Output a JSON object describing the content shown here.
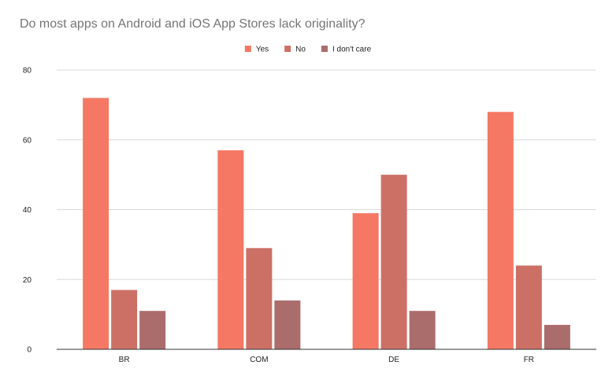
{
  "chart_data": {
    "type": "bar",
    "title": "Do most apps on Android and iOS App Stores lack originality?",
    "categories": [
      "BR",
      "COM",
      "DE",
      "FR"
    ],
    "series": [
      {
        "name": "Yes",
        "values": [
          72,
          57,
          39,
          68
        ],
        "color": "#f47864"
      },
      {
        "name": "No",
        "values": [
          17,
          29,
          50,
          24
        ],
        "color": "#cc7066"
      },
      {
        "name": "I don't care",
        "values": [
          11,
          14,
          11,
          7
        ],
        "color": "#ab6c6c"
      }
    ],
    "ylim": [
      0,
      80
    ],
    "yticks": [
      0,
      20,
      40,
      60,
      80
    ],
    "xlabel": "",
    "ylabel": "",
    "grid": true,
    "legend": "top-center"
  }
}
